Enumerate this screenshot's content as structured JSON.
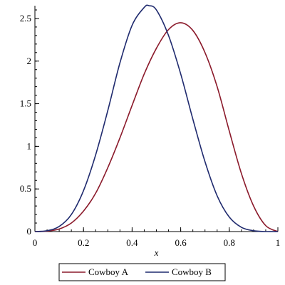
{
  "chart_data": {
    "type": "line",
    "title": "",
    "xlabel": "x",
    "ylabel": "",
    "xlim": [
      0,
      1
    ],
    "ylim": [
      0,
      2.65
    ],
    "xticks": [
      0,
      0.2,
      0.4,
      0.6,
      0.8,
      1
    ],
    "xtick_labels": [
      "0",
      "0.2",
      "0.4",
      "0.6",
      "0.8",
      "1"
    ],
    "yticks": [
      0,
      0.5,
      1,
      1.5,
      2,
      2.5
    ],
    "ytick_labels": [
      "0",
      "0.5",
      "1",
      "1.5",
      "2",
      "2.5"
    ],
    "grid": false,
    "legend_position": "bottom",
    "series": [
      {
        "name": "Cowboy A",
        "color": "#8b1a2b",
        "x": [
          0,
          0.05,
          0.1,
          0.15,
          0.2,
          0.25,
          0.3,
          0.35,
          0.4,
          0.45,
          0.5,
          0.55,
          0.6,
          0.65,
          0.7,
          0.75,
          0.8,
          0.85,
          0.9,
          0.95,
          1
        ],
        "y": [
          0,
          0.005,
          0.03,
          0.1,
          0.24,
          0.45,
          0.75,
          1.1,
          1.48,
          1.85,
          2.15,
          2.37,
          2.45,
          2.36,
          2.1,
          1.7,
          1.18,
          0.68,
          0.3,
          0.07,
          0
        ]
      },
      {
        "name": "Cowboy B",
        "color": "#1f2a6e",
        "x": [
          0,
          0.05,
          0.1,
          0.15,
          0.2,
          0.25,
          0.3,
          0.35,
          0.4,
          0.45,
          0.47,
          0.5,
          0.55,
          0.6,
          0.65,
          0.7,
          0.75,
          0.8,
          0.85,
          0.9,
          0.95,
          1
        ],
        "y": [
          0,
          0.01,
          0.06,
          0.2,
          0.48,
          0.9,
          1.42,
          1.98,
          2.42,
          2.63,
          2.65,
          2.6,
          2.3,
          1.85,
          1.32,
          0.82,
          0.42,
          0.17,
          0.05,
          0.01,
          0,
          0
        ]
      }
    ]
  }
}
